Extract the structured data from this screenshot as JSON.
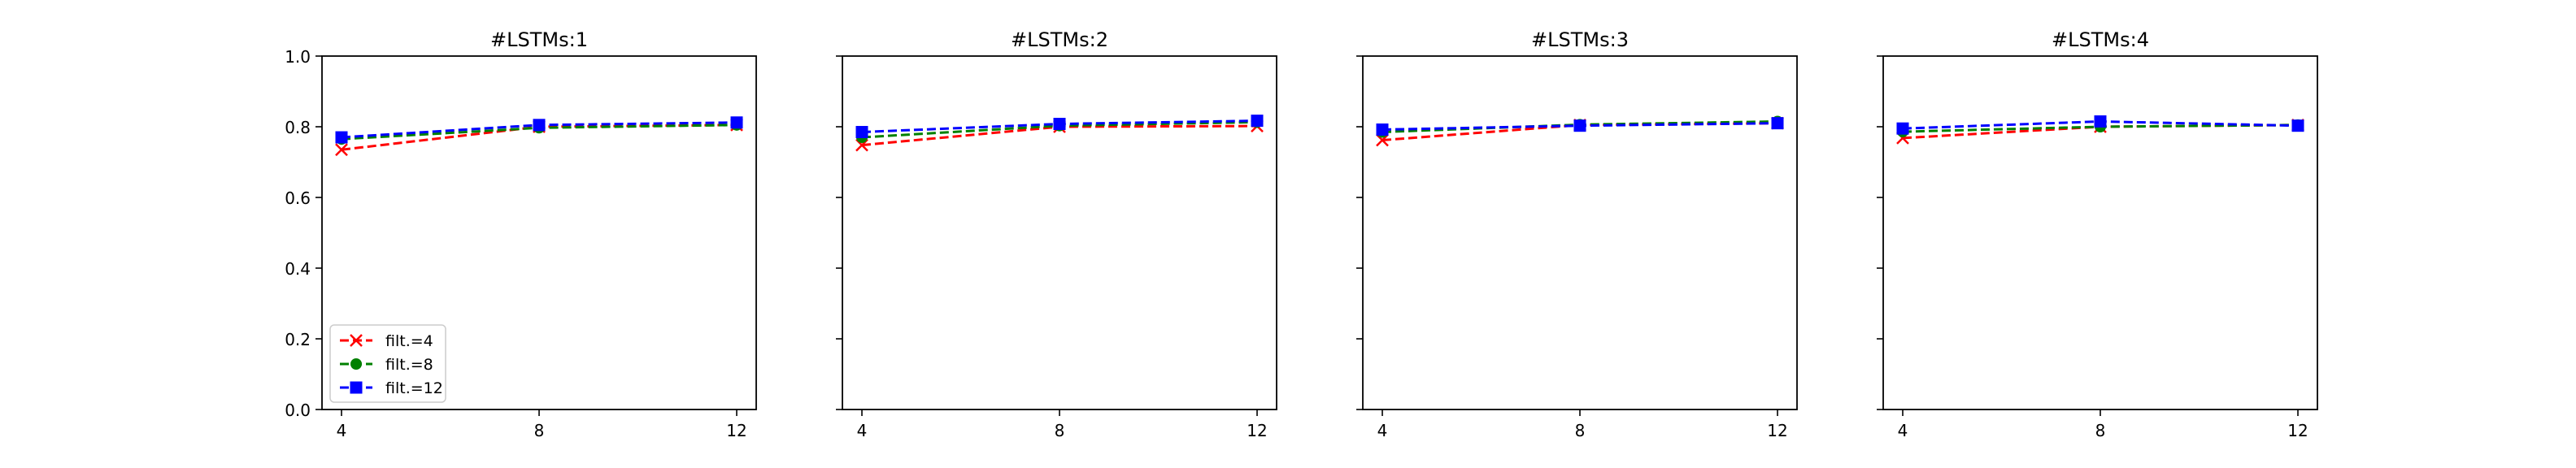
{
  "figure": {
    "legend": [
      {
        "label": "filt.=4",
        "color": "#ff0000",
        "marker": "x"
      },
      {
        "label": "filt.=8",
        "color": "#008000",
        "marker": "o"
      },
      {
        "label": "filt.=12",
        "color": "#0000ff",
        "marker": "s"
      }
    ]
  },
  "chart_data": [
    {
      "type": "line",
      "title": "#LSTMs:1",
      "x": [
        4,
        8,
        12
      ],
      "xticks": [
        "4",
        "8",
        "12"
      ],
      "ylim": [
        0,
        1.0
      ],
      "yticks": [
        "0.0",
        "0.2",
        "0.4",
        "0.6",
        "0.8",
        "1.0"
      ],
      "grid": false,
      "legend_position": "lower-left",
      "series": [
        {
          "name": "filt.=4",
          "color": "#ff0000",
          "marker": "x",
          "values": [
            0.735,
            0.8,
            0.805
          ]
        },
        {
          "name": "filt.=8",
          "color": "#008000",
          "marker": "o",
          "values": [
            0.765,
            0.797,
            0.805
          ]
        },
        {
          "name": "filt.=12",
          "color": "#0000ff",
          "marker": "s",
          "values": [
            0.77,
            0.805,
            0.812
          ]
        }
      ]
    },
    {
      "type": "line",
      "title": "#LSTMs:2",
      "x": [
        4,
        8,
        12
      ],
      "xticks": [
        "4",
        "8",
        "12"
      ],
      "ylim": [
        0,
        1.0
      ],
      "yticks": [
        "0.0",
        "0.2",
        "0.4",
        "0.6",
        "0.8",
        "1.0"
      ],
      "grid": false,
      "series": [
        {
          "name": "filt.=4",
          "color": "#ff0000",
          "marker": "x",
          "values": [
            0.748,
            0.8,
            0.802
          ]
        },
        {
          "name": "filt.=8",
          "color": "#008000",
          "marker": "o",
          "values": [
            0.77,
            0.803,
            0.813
          ]
        },
        {
          "name": "filt.=12",
          "color": "#0000ff",
          "marker": "s",
          "values": [
            0.785,
            0.808,
            0.817
          ]
        }
      ]
    },
    {
      "type": "line",
      "title": "#LSTMs:3",
      "x": [
        4,
        8,
        12
      ],
      "xticks": [
        "4",
        "8",
        "12"
      ],
      "ylim": [
        0,
        1.0
      ],
      "yticks": [
        "0.0",
        "0.2",
        "0.4",
        "0.6",
        "0.8",
        "1.0"
      ],
      "grid": false,
      "series": [
        {
          "name": "filt.=4",
          "color": "#ff0000",
          "marker": "x",
          "values": [
            0.762,
            0.805,
            0.81
          ]
        },
        {
          "name": "filt.=8",
          "color": "#008000",
          "marker": "o",
          "values": [
            0.785,
            0.806,
            0.815
          ]
        },
        {
          "name": "filt.=12",
          "color": "#0000ff",
          "marker": "s",
          "values": [
            0.792,
            0.803,
            0.81
          ]
        }
      ]
    },
    {
      "type": "line",
      "title": "#LSTMs:4",
      "x": [
        4,
        8,
        12
      ],
      "xticks": [
        "4",
        "8",
        "12"
      ],
      "ylim": [
        0,
        1.0
      ],
      "yticks": [
        "0.0",
        "0.2",
        "0.4",
        "0.6",
        "0.8",
        "1.0"
      ],
      "grid": false,
      "series": [
        {
          "name": "filt.=4",
          "color": "#ff0000",
          "marker": "x",
          "values": [
            0.768,
            0.8,
            0.805
          ]
        },
        {
          "name": "filt.=8",
          "color": "#008000",
          "marker": "o",
          "values": [
            0.786,
            0.8,
            0.805
          ]
        },
        {
          "name": "filt.=12",
          "color": "#0000ff",
          "marker": "s",
          "values": [
            0.795,
            0.815,
            0.803
          ]
        }
      ]
    }
  ]
}
